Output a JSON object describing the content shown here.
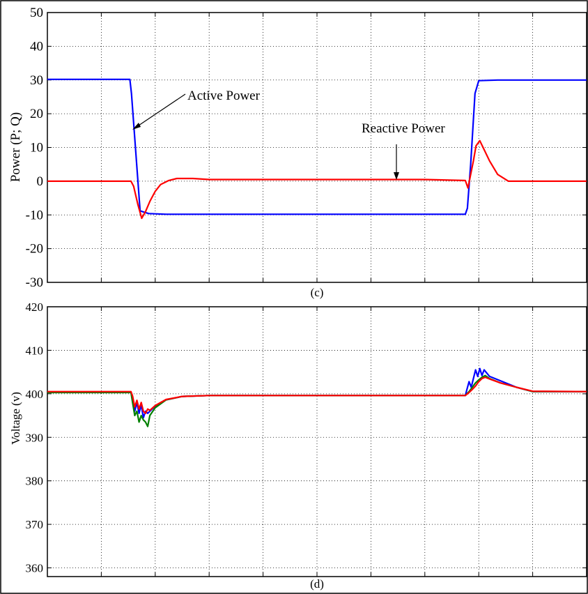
{
  "panels": [
    {
      "caption": "(c)",
      "chart_data": {
        "type": "line",
        "title": "",
        "xlabel": "",
        "ylabel": "Power (P; Q)",
        "xlim": [
          0,
          10
        ],
        "ylim": [
          -30,
          50
        ],
        "xticks": [
          0,
          1,
          2,
          3,
          4,
          5,
          6,
          7,
          8,
          9,
          10
        ],
        "xtick_labels": [],
        "yticks": [
          -30,
          -20,
          -10,
          0,
          10,
          20,
          30,
          40,
          50
        ],
        "ytick_labels": [
          "-30",
          "-20",
          "-10",
          "0",
          "10",
          "20",
          "30",
          "40",
          "50"
        ],
        "grid": true,
        "series": [
          {
            "name": "Active Power",
            "color": "#0000ff",
            "x": [
              0,
              1.53,
              1.56,
              1.72,
              1.8,
              1.88,
              2.2,
              3,
              4,
              5,
              6,
              7,
              7.75,
              7.79,
              7.85,
              7.93,
              8.0,
              8.35,
              9,
              10
            ],
            "y": [
              30.2,
              30.2,
              26,
              -8.8,
              -9.2,
              -9.6,
              -9.8,
              -9.8,
              -9.8,
              -9.8,
              -9.8,
              -9.8,
              -9.8,
              -8,
              5,
              26,
              29.8,
              30,
              30,
              30
            ]
          },
          {
            "name": "Reactive Power",
            "color": "#ff0000",
            "x": [
              0,
              1.55,
              1.6,
              1.68,
              1.75,
              1.82,
              1.9,
              2.0,
              2.1,
              2.25,
              2.4,
              2.7,
              3,
              4,
              5,
              6,
              7,
              7.75,
              7.8,
              7.85,
              7.9,
              7.95,
              8.02,
              8.08,
              8.2,
              8.35,
              8.55,
              8.7,
              9,
              10
            ],
            "y": [
              0,
              0,
              -1.5,
              -7,
              -11,
              -9,
              -6,
              -3,
              -1,
              0.2,
              0.8,
              0.8,
              0.5,
              0.5,
              0.5,
              0.5,
              0.5,
              0.2,
              -2,
              2,
              6,
              10.5,
              12,
              10,
              6,
              2,
              0,
              0,
              0,
              0
            ]
          }
        ],
        "annotations": [
          {
            "text": "Active Power"
          },
          {
            "text": "Reactive Power"
          }
        ]
      }
    },
    {
      "caption": "(d)",
      "chart_data": {
        "type": "line",
        "title": "",
        "xlabel": "",
        "ylabel": "Voltage (v)",
        "xlim": [
          0,
          10
        ],
        "ylim": [
          358,
          420
        ],
        "xticks": [
          0,
          1,
          2,
          3,
          4,
          5,
          6,
          7,
          8,
          9,
          10
        ],
        "xtick_labels": [],
        "yticks": [
          360,
          370,
          380,
          390,
          400,
          410,
          420
        ],
        "ytick_labels": [
          "360",
          "370",
          "380",
          "390",
          "400",
          "410",
          "420"
        ],
        "grid": true,
        "series": [
          {
            "color": "#0000ff",
            "x": [
              0,
              1.55,
              1.58,
              1.62,
              1.66,
              1.7,
              1.74,
              1.78,
              1.82,
              1.86,
              1.9,
              2.0,
              2.2,
              2.5,
              3,
              4,
              5,
              6,
              7,
              7.75,
              7.78,
              7.82,
              7.86,
              7.9,
              7.94,
              7.98,
              8.02,
              8.06,
              8.1,
              8.2,
              8.4,
              8.7,
              9,
              10
            ],
            "y": [
              400.4,
              400.4,
              399,
              396,
              398,
              395.5,
              397.5,
              394.5,
              396,
              395.5,
              396,
              397.2,
              398.6,
              399.4,
              399.6,
              399.6,
              399.6,
              399.6,
              399.6,
              399.6,
              401,
              402.8,
              401.5,
              403.5,
              405.5,
              404,
              405.8,
              404.2,
              405.5,
              404,
              403,
              401.5,
              400.5,
              400.5
            ]
          },
          {
            "color": "#008000",
            "x": [
              0,
              1.55,
              1.58,
              1.62,
              1.66,
              1.7,
              1.74,
              1.78,
              1.82,
              1.86,
              1.9,
              2.0,
              2.2,
              2.5,
              3,
              4,
              5,
              6,
              7,
              7.75,
              7.82,
              7.88,
              7.94,
              8.0,
              8.06,
              8.12,
              8.2,
              8.4,
              8.7,
              9,
              10
            ],
            "y": [
              400.3,
              400.3,
              398,
              395,
              396,
              393.5,
              395,
              394,
              393.5,
              392.5,
              395,
              396.8,
              398.6,
              399.4,
              399.6,
              399.6,
              399.6,
              399.6,
              399.6,
              399.6,
              400.5,
              401.5,
              402.5,
              403.2,
              403.8,
              404.2,
              403.5,
              402.5,
              401.5,
              400.5,
              400.5
            ]
          },
          {
            "color": "#ff0000",
            "x": [
              0,
              1.55,
              1.58,
              1.62,
              1.66,
              1.7,
              1.74,
              1.78,
              1.82,
              1.86,
              1.9,
              2.0,
              2.2,
              2.5,
              3,
              4,
              5,
              6,
              7,
              7.75,
              7.82,
              7.88,
              7.94,
              8.0,
              8.06,
              8.12,
              8.2,
              8.4,
              8.7,
              9,
              10
            ],
            "y": [
              400.5,
              400.5,
              399.5,
              397,
              398.5,
              396.5,
              398,
              396,
              395.5,
              396.5,
              396.2,
              397.3,
              398.7,
              399.4,
              399.6,
              399.6,
              399.6,
              399.6,
              399.6,
              399.6,
              400.3,
              401,
              401.8,
              402.8,
              403.5,
              403.8,
              403.4,
              402.5,
              401.5,
              400.6,
              400.5
            ]
          }
        ]
      }
    }
  ]
}
